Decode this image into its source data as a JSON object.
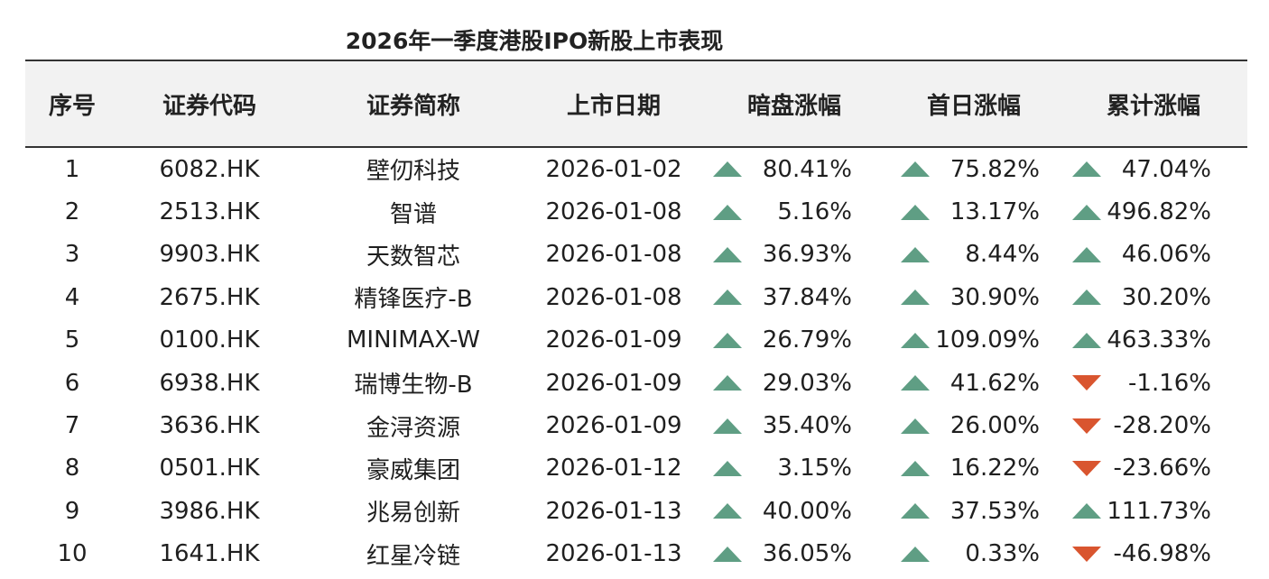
{
  "title": "2026年一季度港股IPO新股上市表现",
  "colors": {
    "up": "#5f9e84",
    "down": "#d9552f",
    "header_bg": "#f2f2f2"
  },
  "headers": [
    "序号",
    "证券代码",
    "证券简称",
    "上市日期",
    "暗盘涨幅",
    "首日涨幅",
    "累计涨幅"
  ],
  "rows": [
    {
      "no": "1",
      "code": "6082.HK",
      "name": "壁仞科技",
      "date": "2026-01-02",
      "grey": "80.41%",
      "grey_dir": "up",
      "first": "75.82%",
      "first_dir": "up",
      "total": "47.04%",
      "total_dir": "up"
    },
    {
      "no": "2",
      "code": "2513.HK",
      "name": "智谱",
      "date": "2026-01-08",
      "grey": "5.16%",
      "grey_dir": "up",
      "first": "13.17%",
      "first_dir": "up",
      "total": "496.82%",
      "total_dir": "up"
    },
    {
      "no": "3",
      "code": "9903.HK",
      "name": "天数智芯",
      "date": "2026-01-08",
      "grey": "36.93%",
      "grey_dir": "up",
      "first": "8.44%",
      "first_dir": "up",
      "total": "46.06%",
      "total_dir": "up"
    },
    {
      "no": "4",
      "code": "2675.HK",
      "name": "精锋医疗-B",
      "date": "2026-01-08",
      "grey": "37.84%",
      "grey_dir": "up",
      "first": "30.90%",
      "first_dir": "up",
      "total": "30.20%",
      "total_dir": "up"
    },
    {
      "no": "5",
      "code": "0100.HK",
      "name": "MINIMAX-W",
      "date": "2026-01-09",
      "grey": "26.79%",
      "grey_dir": "up",
      "first": "109.09%",
      "first_dir": "up",
      "total": "463.33%",
      "total_dir": "up"
    },
    {
      "no": "6",
      "code": "6938.HK",
      "name": "瑞博生物-B",
      "date": "2026-01-09",
      "grey": "29.03%",
      "grey_dir": "up",
      "first": "41.62%",
      "first_dir": "up",
      "total": "-1.16%",
      "total_dir": "down"
    },
    {
      "no": "7",
      "code": "3636.HK",
      "name": "金浔资源",
      "date": "2026-01-09",
      "grey": "35.40%",
      "grey_dir": "up",
      "first": "26.00%",
      "first_dir": "up",
      "total": "-28.20%",
      "total_dir": "down"
    },
    {
      "no": "8",
      "code": "0501.HK",
      "name": "豪威集团",
      "date": "2026-01-12",
      "grey": "3.15%",
      "grey_dir": "up",
      "first": "16.22%",
      "first_dir": "up",
      "total": "-23.66%",
      "total_dir": "down"
    },
    {
      "no": "9",
      "code": "3986.HK",
      "name": "兆易创新",
      "date": "2026-01-13",
      "grey": "40.00%",
      "grey_dir": "up",
      "first": "37.53%",
      "first_dir": "up",
      "total": "111.73%",
      "total_dir": "up"
    },
    {
      "no": "10",
      "code": "1641.HK",
      "name": "红星冷链",
      "date": "2026-01-13",
      "grey": "36.05%",
      "grey_dir": "up",
      "first": "0.33%",
      "first_dir": "up",
      "total": "-46.98%",
      "total_dir": "down"
    }
  ]
}
